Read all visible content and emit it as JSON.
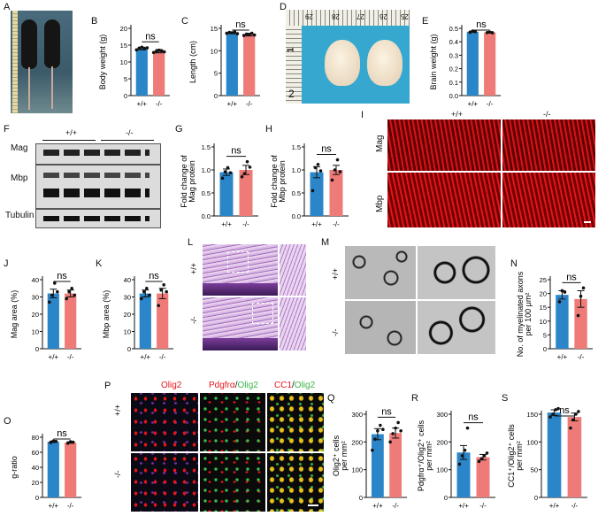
{
  "letters": [
    "A",
    "B",
    "C",
    "D",
    "E",
    "F",
    "G",
    "H",
    "I",
    "J",
    "K",
    "L",
    "M",
    "N",
    "O",
    "P",
    "Q",
    "R",
    "S"
  ],
  "genotypes": [
    "+/+",
    "-/-"
  ],
  "colors": {
    "wt": "#2b86c9",
    "ko": "#ef7b78",
    "red": "#e8141b",
    "green": "#39b54a"
  },
  "ns": "ns",
  "panelD": {
    "ruler_numbers": [
      "29",
      "28",
      "27",
      "26",
      "25"
    ],
    "scale_label": "1",
    "ruler_side": "2"
  },
  "panelF": {
    "rows": [
      "Mag",
      "Mbp",
      "Tubulin"
    ]
  },
  "panelI": {
    "rows": [
      "Mag",
      "Mbp"
    ]
  },
  "panelP": {
    "header1": "Olig2",
    "header2a": "Pdgfrα",
    "header2b": "/",
    "header2c": "Olig2",
    "header3a": "CC1",
    "header3b": "/",
    "header3c": "Olig2"
  },
  "charts": [
    {
      "id": "B",
      "ylabel": "Body weight (g)",
      "ylim": [
        0,
        20
      ],
      "ticks": [
        0,
        5,
        10,
        15,
        20
      ],
      "values": [
        14.0,
        13.2
      ],
      "err": [
        0.4,
        0.5
      ],
      "points": [
        [
          13.6,
          14.1,
          14.4,
          13.9,
          14.2
        ],
        [
          12.8,
          13.1,
          13.5,
          13.3,
          13.0
        ]
      ]
    },
    {
      "id": "C",
      "ylabel": "Length (cm)",
      "ylim": [
        0,
        15
      ],
      "ticks": [
        0,
        5,
        10,
        15
      ],
      "values": [
        14.0,
        13.6
      ],
      "err": [
        0.2,
        0.3
      ],
      "points": [
        [
          13.9,
          14.1,
          14.0,
          14.2,
          13.8
        ],
        [
          13.4,
          13.7,
          13.6,
          13.9,
          13.5
        ]
      ]
    },
    {
      "id": "E",
      "ylabel": "Brain weight (g)",
      "ylim": [
        0,
        0.5
      ],
      "ticks": [
        "0.0",
        "0.1",
        "0.2",
        "0.3",
        "0.4",
        "0.5"
      ],
      "values": [
        0.475,
        0.47
      ],
      "err": [
        0.005,
        0.006
      ],
      "points": [
        [
          0.47,
          0.48,
          0.475
        ],
        [
          0.468,
          0.472,
          0.466
        ]
      ]
    },
    {
      "id": "G",
      "ylabel": "Fold change of Mag protein",
      "ylim": [
        0,
        1.5
      ],
      "ticks": [
        "0.0",
        "0.5",
        "1.0",
        "1.5"
      ],
      "values": [
        0.95,
        1.0
      ],
      "err": [
        0.07,
        0.1
      ],
      "points": [
        [
          0.82,
          0.96,
          1.05,
          0.94
        ],
        [
          0.85,
          0.92,
          1.18,
          1.06
        ]
      ]
    },
    {
      "id": "H",
      "ylabel": "Fold change of Mbp protein",
      "ylim": [
        0,
        1.5
      ],
      "ticks": [
        "0.0",
        "0.5",
        "1.0",
        "1.5"
      ],
      "values": [
        0.95,
        1.0
      ],
      "err": [
        0.12,
        0.1
      ],
      "points": [
        [
          0.55,
          1.05,
          1.12,
          0.98
        ],
        [
          0.78,
          1.0,
          1.22,
          0.96
        ]
      ]
    },
    {
      "id": "J",
      "ylabel": "Mag area (%)",
      "ylim": [
        0,
        40
      ],
      "ticks": [
        0,
        10,
        20,
        30,
        40
      ],
      "values": [
        32,
        32
      ],
      "err": [
        2.5,
        2
      ],
      "points": [
        [
          27,
          31,
          38,
          33
        ],
        [
          29,
          33,
          35,
          31
        ]
      ]
    },
    {
      "id": "K",
      "ylabel": "Mbp area (%)",
      "ylim": [
        0,
        40
      ],
      "ticks": [
        0,
        10,
        20,
        30,
        40
      ],
      "values": [
        32,
        32
      ],
      "err": [
        2,
        3
      ],
      "points": [
        [
          29,
          33,
          35,
          31
        ],
        [
          25,
          34,
          37,
          33
        ]
      ]
    },
    {
      "id": "N",
      "ylabel": "No. of myelinated axons per 100 μm²",
      "ylim": [
        0,
        25
      ],
      "ticks": [
        0,
        5,
        10,
        15,
        20,
        25
      ],
      "values": [
        19.5,
        18
      ],
      "err": [
        1.5,
        3
      ],
      "points": [
        [
          17,
          21,
          20.5
        ],
        [
          12,
          19,
          22
        ]
      ]
    },
    {
      "id": "O",
      "ylabel": "g-ratio",
      "ylim": [
        0,
        80
      ],
      "ticks": [
        0,
        20,
        40,
        60,
        80
      ],
      "values": [
        74,
        73
      ],
      "err": [
        1,
        1
      ],
      "points": [
        [
          73,
          75,
          74.5
        ],
        [
          72,
          74,
          73.5
        ]
      ]
    },
    {
      "id": "Q",
      "ylabel": "Olig2⁺ cells per mm²",
      "ylim": [
        0,
        300
      ],
      "ticks": [
        0,
        100,
        200,
        300
      ],
      "values": [
        228,
        232
      ],
      "err": [
        20,
        18
      ],
      "points": [
        [
          170,
          210,
          240,
          260,
          245
        ],
        [
          200,
          230,
          250,
          270,
          240
        ]
      ]
    },
    {
      "id": "R",
      "ylabel": "Pdgfrα⁺/Olig2⁺ cells per mm²",
      "ylim": [
        0,
        300
      ],
      "ticks": [
        0,
        100,
        200,
        300
      ],
      "values": [
        162,
        145
      ],
      "err": [
        25,
        10
      ],
      "points": [
        [
          120,
          150,
          170,
          250
        ],
        [
          130,
          140,
          150,
          160
        ]
      ]
    },
    {
      "id": "S",
      "ylabel": "CC1⁺/Olig2⁺ cells per mm²",
      "ylim": [
        0,
        150
      ],
      "ticks": [
        0,
        50,
        100,
        150
      ],
      "values": [
        153,
        145
      ],
      "err": [
        5,
        7
      ],
      "points": [
        [
          145,
          150,
          158,
          160
        ],
        [
          125,
          140,
          150,
          155
        ]
      ]
    }
  ]
}
